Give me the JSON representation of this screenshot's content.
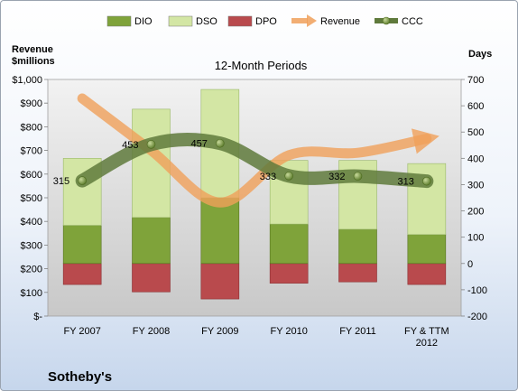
{
  "chart_data": {
    "type": "bar",
    "title": "12-Month Periods",
    "left_axis_label": "Revenue\n$millions",
    "right_axis_label": "Days",
    "company": "Sotheby's",
    "categories": [
      "FY 2007",
      "FY 2008",
      "FY 2009",
      "FY 2010",
      "FY 2011",
      "FY & TTM\n2012"
    ],
    "left_axis": {
      "min": 0,
      "max": 1000,
      "step": 100,
      "tick_labels": [
        "$-",
        "$100",
        "$200",
        "$300",
        "$400",
        "$500",
        "$600",
        "$700",
        "$800",
        "$900",
        "$1,000"
      ]
    },
    "right_axis": {
      "min": -200,
      "max": 700,
      "step": 100,
      "tick_labels": [
        "-200",
        "-100",
        "0",
        "100",
        "200",
        "300",
        "400",
        "500",
        "600",
        "700"
      ]
    },
    "series": [
      {
        "name": "DIO",
        "axis": "right",
        "kind": "bar",
        "color": "#7fa33a",
        "values": [
          145,
          175,
          250,
          150,
          130,
          110
        ]
      },
      {
        "name": "DSO",
        "axis": "right",
        "kind": "bar",
        "color": "#d3e6a4",
        "values": [
          255,
          412,
          412,
          242,
          262,
          270
        ]
      },
      {
        "name": "DPO",
        "axis": "right",
        "kind": "bar",
        "color": "#b94a4d",
        "values": [
          -80,
          -108,
          -135,
          -75,
          -70,
          -80
        ]
      },
      {
        "name": "Revenue",
        "axis": "left",
        "kind": "line",
        "color": "#f0a05a",
        "values": [
          920,
          700,
          480,
          680,
          690,
          750
        ]
      },
      {
        "name": "CCC",
        "axis": "right",
        "kind": "line",
        "color": "#5f7a3c",
        "values": [
          315,
          453,
          457,
          333,
          332,
          313
        ],
        "data_labels": [
          "315",
          "453",
          "457",
          "333",
          "332",
          "313"
        ]
      }
    ],
    "legend_position": "top",
    "grid": false
  }
}
